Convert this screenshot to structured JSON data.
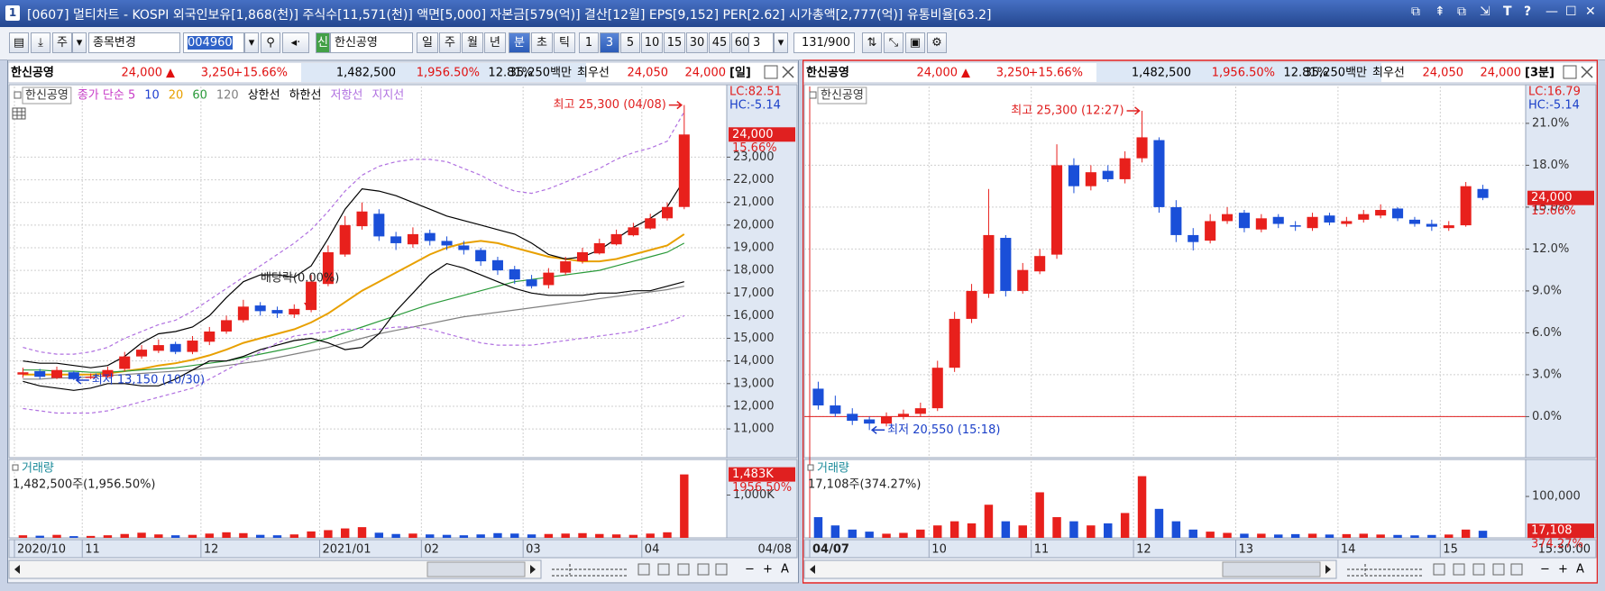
{
  "window": {
    "number": "1",
    "title": "[0607] 멀티차트 - KOSPI 외국인보유[1,868(천)] 주식수[11,571(천)] 액면[5,000] 자본금[579(억)] 결산[12월] EPS[9,152] PER[2.62] 시가총액[2,777(억)] 유통비율[63.2]",
    "buttons": [
      "T",
      "?"
    ]
  },
  "toolbar": {
    "mode": "주",
    "change_label": "종목변경",
    "code": "004960",
    "tag": "신",
    "stock": "한신공영",
    "periods": [
      "일",
      "주",
      "월",
      "년",
      "분",
      "초",
      "틱"
    ],
    "intervals": [
      "1",
      "3",
      "5",
      "10",
      "15",
      "30",
      "45",
      "60"
    ],
    "interval_value": "3",
    "count": "131/900"
  },
  "scroll": {
    "zoom_controls": [
      "−",
      "+",
      "A"
    ]
  },
  "panels": [
    {
      "info": {
        "name": "한신공영",
        "price": "24,000",
        "arrow": "▲",
        "change": "3,250",
        "pct": "+15.66%",
        "volume": "1,482,500",
        "vol_pct": "1,956.50%",
        "turnover": "12.81%",
        "amount": "35,250백만",
        "side": "최우선",
        "bid": "24,050",
        "ask": "24,000",
        "period": "[일]"
      },
      "legend": [
        {
          "text": "한신공영",
          "color": "#333333"
        },
        {
          "text": "종가 단순 5",
          "color": "#c83cc8"
        },
        {
          "text": "10",
          "color": "#2040d0"
        }
      ],
      "up_color": "#e8201c",
      "down_color": "#1a4fd8",
      "categories": [
        "2020/10",
        null,
        null,
        null,
        "11",
        null,
        null,
        null,
        null,
        null,
        null,
        "12",
        null,
        null,
        null,
        null,
        null,
        null,
        "2021/01",
        null,
        null,
        null,
        null,
        null,
        "02",
        null,
        null,
        null,
        null,
        null,
        "03",
        null,
        null,
        null,
        null,
        null,
        null,
        "04",
        null,
        null
      ],
      "end_label": "04/08",
      "candles": {
        "open": [
          13400,
          13550,
          13250,
          13500,
          13250,
          13300,
          13650,
          14200,
          14450,
          14750,
          14400,
          14850,
          15300,
          15800,
          16450,
          16250,
          16050,
          16250,
          17400,
          18700,
          19950,
          20500,
          19500,
          19150,
          19650,
          19300,
          19100,
          18900,
          18450,
          18050,
          17600,
          17350,
          17900,
          18400,
          18750,
          19150,
          19550,
          19850,
          20300,
          20800
        ],
        "high": [
          13700,
          13650,
          13750,
          13550,
          13450,
          13750,
          14400,
          14700,
          14950,
          14850,
          15100,
          15500,
          16000,
          16700,
          16600,
          16400,
          16500,
          17800,
          19100,
          20400,
          21000,
          20700,
          19700,
          19900,
          19800,
          19500,
          19300,
          19000,
          18600,
          18200,
          17800,
          18100,
          18600,
          19000,
          19400,
          19800,
          20100,
          20500,
          21000,
          25300
        ],
        "low": [
          13250,
          13200,
          13200,
          13150,
          13200,
          13250,
          13550,
          14100,
          14350,
          14300,
          14300,
          14700,
          15200,
          15700,
          16000,
          15900,
          15900,
          16150,
          17300,
          18600,
          19800,
          19300,
          18900,
          19000,
          19100,
          18900,
          18700,
          18200,
          17800,
          17400,
          17200,
          17200,
          17800,
          18300,
          18700,
          19100,
          19500,
          19800,
          20200,
          20700
        ],
        "close": [
          13500,
          13300,
          13600,
          13200,
          13300,
          13600,
          14200,
          14500,
          14700,
          14400,
          14900,
          15300,
          15800,
          16400,
          16200,
          16100,
          16300,
          17500,
          18800,
          20000,
          20600,
          19500,
          19200,
          19600,
          19300,
          19100,
          18900,
          18400,
          18000,
          17600,
          17300,
          17900,
          18400,
          18800,
          19200,
          19600,
          19900,
          20300,
          20800,
          24000
        ]
      },
      "series": [
        {
          "name": "20",
          "color": "#e8a000",
          "values": [
            13400,
            13400,
            13400,
            13400,
            13400,
            13450,
            13550,
            13650,
            13800,
            13900,
            14050,
            14250,
            14500,
            14800,
            15000,
            15200,
            15400,
            15700,
            16100,
            16600,
            17100,
            17500,
            17900,
            18300,
            18700,
            19000,
            19200,
            19300,
            19200,
            19000,
            18800,
            18600,
            18500,
            18400,
            18400,
            18500,
            18700,
            18900,
            19100,
            19600
          ]
        },
        {
          "name": "60",
          "color": "#2a9a3a",
          "values": [
            13600,
            13600,
            13550,
            13550,
            13500,
            13500,
            13550,
            13600,
            13650,
            13700,
            13800,
            13900,
            14000,
            14150,
            14300,
            14450,
            14600,
            14800,
            15000,
            15250,
            15500,
            15750,
            16000,
            16250,
            16500,
            16700,
            16900,
            17100,
            17300,
            17500,
            17600,
            17700,
            17800,
            17900,
            18000,
            18200,
            18400,
            18600,
            18800,
            19200
          ]
        },
        {
          "name": "120",
          "color": "#808080",
          "values": [
            13200,
            13200,
            13250,
            13250,
            13300,
            13350,
            13400,
            13450,
            13500,
            13550,
            13600,
            13700,
            13800,
            13900,
            14000,
            14150,
            14300,
            14450,
            14600,
            14800,
            15000,
            15200,
            15350,
            15500,
            15650,
            15800,
            15950,
            16050,
            16150,
            16250,
            16350,
            16450,
            16550,
            16650,
            16750,
            16850,
            16950,
            17050,
            17150,
            17300
          ]
        },
        {
          "name": "상한선",
          "color": "#000000",
          "values": [
            14000,
            13900,
            13900,
            13800,
            13700,
            13800,
            14200,
            14800,
            15200,
            15300,
            15500,
            16000,
            16800,
            17500,
            17800,
            17800,
            17700,
            18200,
            19400,
            20700,
            21600,
            21500,
            21300,
            21000,
            20700,
            20400,
            20200,
            20000,
            19800,
            19600,
            19200,
            18700,
            18500,
            18600,
            18900,
            19400,
            19900,
            20300,
            20800,
            22000
          ]
        },
        {
          "name": "하한선",
          "color": "#000000",
          "values": [
            13100,
            12900,
            12800,
            12700,
            12800,
            13000,
            13000,
            12900,
            12900,
            13200,
            13600,
            14000,
            14000,
            14200,
            14500,
            14700,
            14900,
            15000,
            14800,
            14500,
            14600,
            15200,
            16200,
            17000,
            17800,
            18300,
            18100,
            17800,
            17500,
            17200,
            17000,
            16900,
            16900,
            16900,
            17000,
            17000,
            17100,
            17100,
            17300,
            17500
          ]
        },
        {
          "name": "저항선",
          "color": "#b070e0",
          "dash": true,
          "values": [
            14600,
            14400,
            14300,
            14300,
            14400,
            14600,
            15000,
            15300,
            15600,
            15800,
            16200,
            16700,
            17200,
            17700,
            18200,
            18700,
            19200,
            19800,
            20600,
            21500,
            22200,
            22600,
            22800,
            22900,
            22900,
            22800,
            22500,
            22200,
            21800,
            21500,
            21400,
            21600,
            21900,
            22200,
            22500,
            22900,
            23200,
            23400,
            23700,
            25000
          ]
        },
        {
          "name": "지지선",
          "color": "#b070e0",
          "dash": true,
          "values": [
            11900,
            11800,
            11700,
            11700,
            11700,
            11800,
            12000,
            12200,
            12400,
            12600,
            12800,
            13200,
            13600,
            14000,
            14400,
            14800,
            15100,
            15200,
            15300,
            15400,
            15400,
            15400,
            15500,
            15500,
            15400,
            15200,
            15000,
            14800,
            14700,
            14700,
            14700,
            14800,
            14900,
            15000,
            15100,
            15200,
            15300,
            15500,
            15700,
            16000
          ]
        }
      ],
      "ylim": [
        9730,
        26120
      ],
      "yticks": [
        {
          "value": 11000,
          "label": "11,000"
        },
        {
          "value": 12000,
          "label": "12,000"
        },
        {
          "value": 13000,
          "label": "13,000"
        },
        {
          "value": 14000,
          "label": "14,000"
        },
        {
          "value": 15000,
          "label": "15,000"
        },
        {
          "value": 16000,
          "label": "16,000"
        },
        {
          "value": 17000,
          "label": "17,000"
        },
        {
          "value": 18000,
          "label": "18,000"
        },
        {
          "value": 19000,
          "label": "19,000"
        },
        {
          "value": 20000,
          "label": "20,000"
        },
        {
          "value": 21000,
          "label": "21,000"
        },
        {
          "value": 22000,
          "label": "22,000"
        },
        {
          "value": 23000,
          "label": "23,000"
        }
      ],
      "lc": "LC:82.51",
      "hc": "HC:-5.14",
      "current": {
        "value": 24000,
        "label": "24,000",
        "pct": "15.66%"
      },
      "high_label": "최고 25,300 (04/08)",
      "low_label": "최저 13,150 (10/30)",
      "note": "배당락(0.00%)",
      "volume": {
        "title": "거래량",
        "text": "1,482,500주(1,956.50%)",
        "ylim": [
          0,
          1790000
        ],
        "yticks": [
          {
            "value": 1000000,
            "label": "1,000K"
          }
        ],
        "values": [
          60000,
          50000,
          70000,
          40000,
          45000,
          60000,
          90000,
          120000,
          80000,
          60000,
          70000,
          100000,
          130000,
          110000,
          70000,
          60000,
          80000,
          150000,
          180000,
          220000,
          250000,
          120000,
          90000,
          100000,
          80000,
          70000,
          60000,
          80000,
          110000,
          100000,
          80000,
          90000,
          100000,
          110000,
          90000,
          80000,
          70000,
          100000,
          130000,
          1482500
        ],
        "current": {
          "value": 1482500,
          "label": "1,483K",
          "pct": "1956.50%"
        }
      }
    },
    {
      "info": {
        "name": "한신공영",
        "price": "24,000",
        "arrow": "▲",
        "change": "3,250",
        "pct": "+15.66%",
        "volume": "1,482,500",
        "vol_pct": "1,956.50%",
        "turnover": "12.81%",
        "amount": "35,250백만",
        "side": "최우선",
        "bid": "24,050",
        "ask": "24,000",
        "period": "[3분]"
      },
      "legend": [
        {
          "text": "한신공영",
          "color": "#333333"
        }
      ],
      "up_color": "#e8201c",
      "down_color": "#1a4fd8",
      "categories": [
        "04/07",
        null,
        null,
        null,
        null,
        null,
        null,
        "10",
        null,
        null,
        null,
        null,
        null,
        "11",
        null,
        null,
        null,
        null,
        null,
        "12",
        null,
        null,
        null,
        null,
        null,
        "13",
        null,
        null,
        null,
        null,
        null,
        "14",
        null,
        null,
        null,
        null,
        null,
        "15",
        null,
        null
      ],
      "end_label": "15:30:00",
      "candles": {
        "open": [
          2.0,
          0.8,
          0.2,
          -0.2,
          -0.5,
          0.0,
          0.2,
          0.6,
          3.5,
          7.0,
          8.8,
          12.8,
          9.0,
          10.4,
          11.6,
          18.0,
          16.5,
          17.6,
          17.0,
          18.5,
          19.8,
          15.0,
          13.0,
          12.6,
          14.0,
          14.6,
          13.4,
          14.3,
          13.7,
          13.5,
          14.4,
          13.8,
          14.1,
          14.4,
          14.9,
          14.1,
          13.8,
          13.5,
          13.7,
          16.3
        ],
        "high": [
          2.5,
          1.5,
          0.6,
          0.0,
          0.3,
          0.5,
          1.0,
          4.0,
          7.5,
          9.5,
          16.3,
          13.0,
          11.0,
          12.0,
          19.5,
          18.5,
          18.0,
          18.0,
          19.0,
          21.9,
          20.0,
          15.5,
          13.5,
          14.5,
          15.0,
          14.8,
          14.5,
          14.5,
          14.0,
          14.6,
          14.6,
          14.3,
          14.8,
          15.2,
          15.0,
          14.3,
          14.1,
          14.0,
          16.8,
          16.6
        ],
        "low": [
          0.5,
          0.0,
          -0.6,
          -0.96,
          -0.7,
          -0.2,
          0.0,
          0.4,
          3.2,
          6.7,
          8.5,
          8.6,
          8.8,
          10.2,
          11.3,
          16.0,
          16.2,
          16.8,
          16.7,
          18.2,
          14.6,
          12.5,
          11.9,
          12.4,
          13.8,
          13.2,
          13.2,
          13.5,
          13.3,
          13.3,
          13.7,
          13.6,
          13.9,
          14.2,
          14.0,
          13.6,
          13.3,
          13.3,
          13.6,
          15.5
        ],
        "close": [
          0.8,
          0.2,
          -0.3,
          -0.5,
          0.0,
          0.2,
          0.6,
          3.5,
          7.0,
          9.0,
          13.0,
          9.0,
          10.5,
          11.5,
          18.0,
          16.5,
          17.5,
          17.0,
          18.5,
          20.0,
          15.0,
          13.0,
          12.5,
          14.0,
          14.5,
          13.5,
          14.2,
          13.8,
          13.6,
          14.3,
          13.9,
          14.0,
          14.5,
          14.8,
          14.2,
          13.8,
          13.6,
          13.7,
          16.5,
          15.66
        ]
      },
      "series": [],
      "ylim": [
        -2.94,
        23.64
      ],
      "yticks": [
        {
          "value": 0,
          "label": "0.0%"
        },
        {
          "value": 3,
          "label": "3.0%"
        },
        {
          "value": 6,
          "label": "6.0%"
        },
        {
          "value": 9,
          "label": "9.0%"
        },
        {
          "value": 12,
          "label": "12.0%"
        },
        {
          "value": 15,
          "label": "15.0%"
        },
        {
          "value": 18,
          "label": "18.0%"
        },
        {
          "value": 21,
          "label": "21.0%"
        }
      ],
      "base_line": 0,
      "lc": "LC:16.79",
      "hc": "HC:-5.14",
      "current": {
        "value": 15.66,
        "label": "24,000",
        "pct": "15.66%"
      },
      "high_label": "최고 25,300 (12:27)",
      "low_label": "최저 20,550 (15:18)",
      "volume": {
        "title": "거래량",
        "text": "17,108주(374.27%)",
        "ylim": [
          0,
          185000
        ],
        "yticks": [
          {
            "value": 100000,
            "label": "100,000"
          }
        ],
        "values": [
          50000,
          30000,
          20000,
          15000,
          10000,
          12000,
          20000,
          30000,
          40000,
          35000,
          80000,
          40000,
          30000,
          110000,
          50000,
          40000,
          30000,
          35000,
          60000,
          149000,
          70000,
          40000,
          20000,
          15000,
          12000,
          10000,
          10000,
          8000,
          9000,
          10000,
          8000,
          9000,
          10000,
          8000,
          7000,
          6000,
          7000,
          8000,
          20000,
          17108
        ],
        "current": {
          "value": 17108,
          "label": "17,108",
          "pct": "374.27%"
        }
      }
    }
  ]
}
